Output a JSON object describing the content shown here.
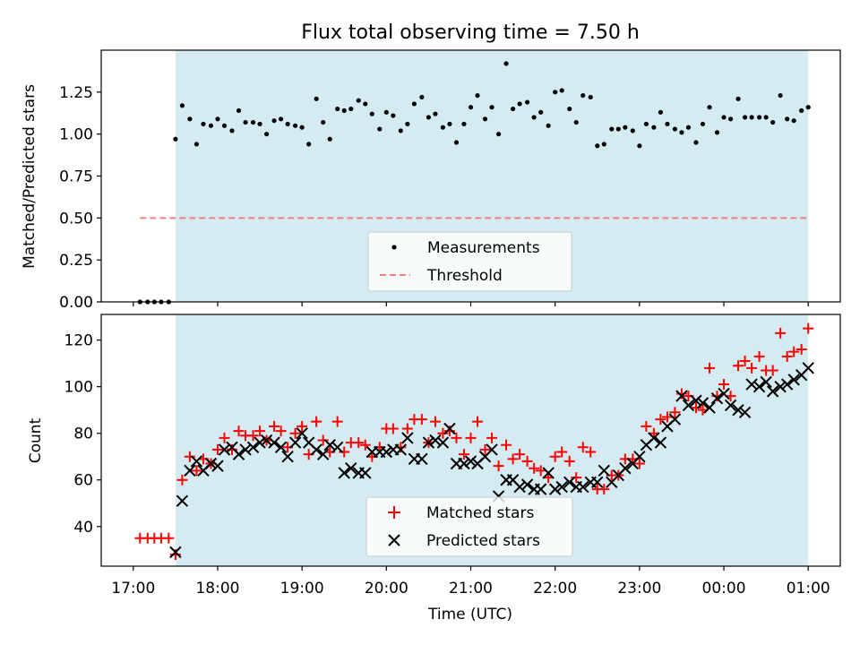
{
  "chart_data": [
    {
      "type": "scatter",
      "title": "Flux total observing time = 7.50 h",
      "xlabel": "",
      "ylabel": "Matched/Predicted stars",
      "xlim": [
        16.62,
        25.38
      ],
      "ylim": [
        0.0,
        1.5
      ],
      "yticks": [
        0.0,
        0.25,
        0.5,
        0.75,
        1.0,
        1.25
      ],
      "ytick_labels": [
        "0.00",
        "0.25",
        "0.50",
        "0.75",
        "1.00",
        "1.25"
      ],
      "xticks": [
        17,
        18,
        19,
        20,
        21,
        22,
        23,
        24,
        25
      ],
      "shaded_span": [
        17.5,
        25.0
      ],
      "shade_color": "#d4ebf1",
      "legend": {
        "position": "lower center",
        "entries": [
          "Measurements",
          "Threshold"
        ]
      },
      "series": [
        {
          "name": "Measurements",
          "marker": "dot",
          "color": "#000000",
          "x": [
            17.08,
            17.17,
            17.25,
            17.33,
            17.42,
            17.5,
            17.58,
            17.67,
            17.75,
            17.83,
            17.92,
            18.0,
            18.08,
            18.17,
            18.25,
            18.33,
            18.42,
            18.5,
            18.58,
            18.67,
            18.75,
            18.83,
            18.92,
            19.0,
            19.08,
            19.17,
            19.25,
            19.33,
            19.42,
            19.5,
            19.58,
            19.67,
            19.75,
            19.83,
            19.92,
            20.0,
            20.08,
            20.17,
            20.25,
            20.33,
            20.42,
            20.5,
            20.58,
            20.67,
            20.75,
            20.83,
            20.92,
            21.0,
            21.08,
            21.17,
            21.25,
            21.33,
            21.42,
            21.5,
            21.58,
            21.67,
            21.75,
            21.83,
            21.92,
            22.0,
            22.08,
            22.17,
            22.25,
            22.33,
            22.42,
            22.5,
            22.58,
            22.67,
            22.75,
            22.83,
            22.92,
            23.0,
            23.08,
            23.17,
            23.25,
            23.33,
            23.42,
            23.5,
            23.58,
            23.67,
            23.75,
            23.83,
            23.92,
            24.0,
            24.08,
            24.17,
            24.25,
            24.33,
            24.42,
            24.5,
            24.58,
            24.67,
            24.75,
            24.83,
            24.92,
            25.0
          ],
          "y": [
            0.0,
            0.0,
            0.0,
            0.0,
            0.0,
            0.97,
            1.17,
            1.09,
            0.94,
            1.06,
            1.05,
            1.09,
            1.05,
            1.02,
            1.14,
            1.07,
            1.07,
            1.06,
            1.0,
            1.08,
            1.09,
            1.06,
            1.05,
            1.04,
            0.94,
            1.21,
            1.07,
            0.97,
            1.15,
            1.14,
            1.15,
            1.2,
            1.18,
            1.12,
            1.03,
            1.13,
            1.11,
            1.02,
            1.06,
            1.18,
            1.22,
            1.1,
            1.12,
            1.04,
            1.06,
            0.95,
            1.06,
            1.16,
            1.23,
            1.09,
            1.16,
            1.0,
            1.42,
            1.15,
            1.18,
            1.19,
            1.1,
            1.13,
            1.05,
            1.25,
            1.26,
            1.15,
            1.07,
            1.23,
            1.22,
            0.93,
            0.94,
            1.03,
            1.03,
            1.04,
            1.02,
            0.93,
            1.06,
            1.04,
            1.13,
            1.06,
            1.03,
            1.01,
            1.04,
            0.95,
            1.06,
            1.16,
            1.01,
            1.1,
            1.09,
            1.21,
            1.1,
            1.1,
            1.1,
            1.1,
            1.07,
            1.23,
            1.09,
            1.08,
            1.14,
            1.16
          ]
        },
        {
          "name": "Threshold",
          "line": "dashed",
          "color": "#f08080",
          "x": [
            17.08,
            25.0
          ],
          "y": [
            0.5,
            0.5
          ]
        }
      ]
    },
    {
      "type": "scatter",
      "title": "",
      "xlabel": "Time (UTC)",
      "ylabel": "Count",
      "xlim": [
        16.62,
        25.38
      ],
      "ylim": [
        23,
        131
      ],
      "yticks": [
        40,
        60,
        80,
        100,
        120
      ],
      "ytick_labels": [
        "40",
        "60",
        "80",
        "100",
        "120"
      ],
      "xticks": [
        17,
        18,
        19,
        20,
        21,
        22,
        23,
        24,
        25
      ],
      "xtick_labels": [
        "17:00",
        "18:00",
        "19:00",
        "20:00",
        "21:00",
        "22:00",
        "23:00",
        "00:00",
        "01:00"
      ],
      "shaded_span": [
        17.5,
        25.0
      ],
      "shade_color": "#d4ebf1",
      "legend": {
        "position": "lower center",
        "entries": [
          "Matched stars",
          "Predicted stars"
        ]
      },
      "series": [
        {
          "name": "Matched stars",
          "marker": "plus",
          "color": "#ff0000",
          "x": [
            17.08,
            17.17,
            17.25,
            17.33,
            17.42,
            17.5,
            17.58,
            17.67,
            17.75,
            17.83,
            17.92,
            18.0,
            18.08,
            18.17,
            18.25,
            18.33,
            18.42,
            18.5,
            18.58,
            18.67,
            18.75,
            18.83,
            18.92,
            19.0,
            19.08,
            19.17,
            19.25,
            19.33,
            19.42,
            19.5,
            19.58,
            19.67,
            19.75,
            19.83,
            19.92,
            20.0,
            20.08,
            20.17,
            20.25,
            20.33,
            20.42,
            20.5,
            20.58,
            20.67,
            20.75,
            20.83,
            20.92,
            21.0,
            21.08,
            21.17,
            21.25,
            21.33,
            21.42,
            21.5,
            21.58,
            21.67,
            21.75,
            21.83,
            21.92,
            22.0,
            22.08,
            22.17,
            22.25,
            22.33,
            22.42,
            22.5,
            22.58,
            22.67,
            22.75,
            22.83,
            22.92,
            23.0,
            23.08,
            23.17,
            23.25,
            23.33,
            23.42,
            23.5,
            23.58,
            23.67,
            23.75,
            23.83,
            23.92,
            24.0,
            24.08,
            24.17,
            24.25,
            24.33,
            24.42,
            24.5,
            24.58,
            24.67,
            24.75,
            24.83,
            24.92,
            25.0
          ],
          "y": [
            35,
            35,
            35,
            35,
            35,
            28,
            60,
            70,
            64,
            69,
            67,
            73,
            78,
            73,
            81,
            79,
            79,
            81,
            77,
            83,
            81,
            74,
            80,
            83,
            71,
            85,
            77,
            72,
            85,
            72,
            76,
            76,
            75,
            70,
            74,
            82,
            82,
            74,
            82,
            86,
            86,
            76,
            85,
            80,
            81,
            78,
            71,
            78,
            85,
            73,
            78,
            66,
            75,
            69,
            71,
            68,
            65,
            64,
            61,
            70,
            72,
            68,
            61,
            74,
            72,
            56,
            56,
            62,
            62,
            69,
            69,
            67,
            83,
            80,
            86,
            87,
            89,
            97,
            96,
            91,
            90,
            108,
            96,
            101,
            96,
            109,
            111,
            108,
            113,
            107,
            107,
            123,
            113,
            115,
            116,
            125
          ]
        },
        {
          "name": "Predicted stars",
          "marker": "x",
          "color": "#000000",
          "x": [
            17.5,
            17.58,
            17.67,
            17.75,
            17.83,
            17.92,
            18.0,
            18.08,
            18.17,
            18.25,
            18.33,
            18.42,
            18.5,
            18.58,
            18.67,
            18.75,
            18.83,
            18.92,
            19.0,
            19.08,
            19.17,
            19.25,
            19.33,
            19.42,
            19.5,
            19.58,
            19.67,
            19.75,
            19.83,
            19.92,
            20.0,
            20.08,
            20.17,
            20.25,
            20.33,
            20.42,
            20.5,
            20.58,
            20.67,
            20.75,
            20.83,
            20.92,
            21.0,
            21.08,
            21.17,
            21.25,
            21.33,
            21.42,
            21.5,
            21.58,
            21.67,
            21.75,
            21.83,
            21.92,
            22.0,
            22.08,
            22.17,
            22.25,
            22.33,
            22.42,
            22.5,
            22.58,
            22.67,
            22.75,
            22.83,
            22.92,
            23.0,
            23.08,
            23.17,
            23.25,
            23.33,
            23.42,
            23.5,
            23.58,
            23.67,
            23.75,
            23.83,
            23.92,
            24.0,
            24.08,
            24.17,
            24.25,
            24.33,
            24.42,
            24.5,
            24.58,
            24.67,
            24.75,
            24.83,
            24.92,
            25.0
          ],
          "y": [
            29,
            51,
            64,
            68,
            64,
            67,
            66,
            73,
            74,
            71,
            73,
            74,
            76,
            77,
            76,
            74,
            70,
            76,
            80,
            76,
            73,
            71,
            75,
            74,
            63,
            65,
            63,
            63,
            72,
            72,
            72,
            73,
            73,
            78,
            69,
            69,
            76,
            77,
            76,
            82,
            67,
            67,
            68,
            67,
            70,
            73,
            53,
            60,
            60,
            57,
            58,
            56,
            56,
            63,
            56,
            57,
            59,
            57,
            57,
            59,
            59,
            64,
            59,
            62,
            65,
            67,
            70,
            75,
            78,
            76,
            83,
            86,
            96,
            92,
            94,
            93,
            91,
            95,
            97,
            92,
            90,
            89,
            101,
            100,
            102,
            98,
            100,
            101,
            103,
            105,
            108
          ]
        }
      ]
    }
  ]
}
